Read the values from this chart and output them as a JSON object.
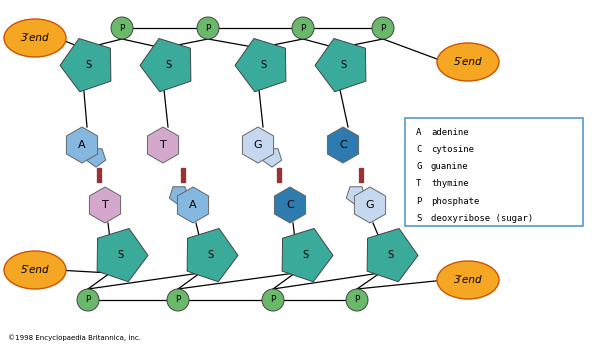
{
  "bg_color": "#ffffff",
  "sugar_color": "#3aab9a",
  "phosphate_color": "#6ab86a",
  "end_color": "#f5a623",
  "end_edge_color": "#cc5500",
  "hbond_color": "#993333",
  "legend_border": "#5599cc",
  "top_base_colors": [
    "#85b8e0",
    "#d4a8cc",
    "#c5d8ef",
    "#2e7bb0"
  ],
  "bot_base_colors": [
    "#d4a8cc",
    "#85b8e0",
    "#2e7bb0",
    "#c5d8ef"
  ],
  "top_base_labels": [
    "A",
    "T",
    "G",
    "C"
  ],
  "bot_base_labels": [
    "T",
    "A",
    "C",
    "G"
  ],
  "top_is_purine": [
    true,
    false,
    true,
    false
  ],
  "bot_is_purine": [
    false,
    true,
    false,
    true
  ],
  "copyright": "©1998 Encyclopaedia Britannica, Inc.",
  "legend_items": [
    [
      "A",
      "adenine"
    ],
    [
      "C",
      "cytosine"
    ],
    [
      "G",
      "guanine"
    ],
    [
      "T",
      "thymine"
    ],
    [
      "P",
      "phosphate"
    ],
    [
      "S",
      "deoxyribose (sugar)"
    ]
  ]
}
